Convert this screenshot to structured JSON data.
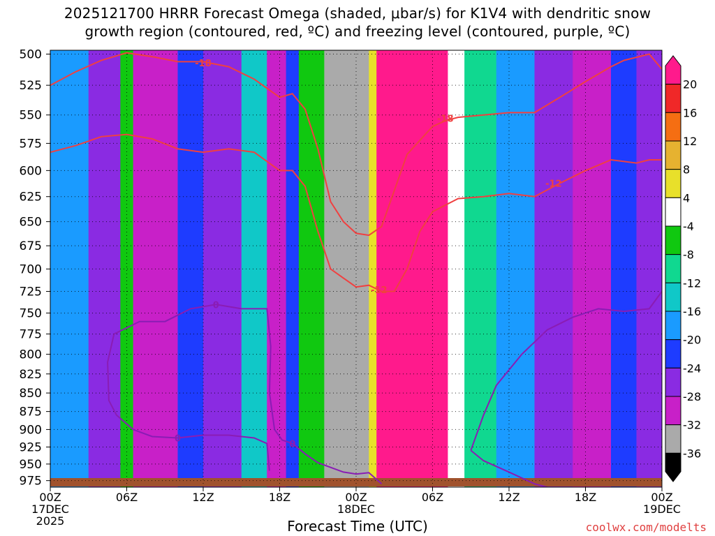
{
  "title_line1": "2025121700 HRRR Forecast Omega (shaded, μbar/s) for K1V4 with dendritic snow",
  "title_line2": "growth region (contoured, red, ºC) and freezing level (contoured, purple, ºC)",
  "xlabel": "Forecast Time (UTC)",
  "credit": "coolwx.com/modelts",
  "chart_data": {
    "type": "heatmap",
    "title": "2025121700 HRRR Forecast Omega (shaded, μbar/s) for K1V4 with dendritic snow growth region (contoured, red, ºC) and freezing level (contoured, purple, ºC)",
    "xlabel": "Forecast Time (UTC)",
    "ylabel": "",
    "x_ticks": [
      {
        "hour": 0,
        "label": "00Z",
        "sub": "17DEC",
        "sub2": "2025"
      },
      {
        "hour": 6,
        "label": "06Z",
        "sub": "",
        "sub2": ""
      },
      {
        "hour": 12,
        "label": "12Z",
        "sub": "",
        "sub2": ""
      },
      {
        "hour": 18,
        "label": "18Z",
        "sub": "",
        "sub2": ""
      },
      {
        "hour": 24,
        "label": "00Z",
        "sub": "18DEC",
        "sub2": ""
      },
      {
        "hour": 30,
        "label": "06Z",
        "sub": "",
        "sub2": ""
      },
      {
        "hour": 36,
        "label": "12Z",
        "sub": "",
        "sub2": ""
      },
      {
        "hour": 42,
        "label": "18Z",
        "sub": "",
        "sub2": ""
      },
      {
        "hour": 48,
        "label": "00Z",
        "sub": "19DEC",
        "sub2": ""
      }
    ],
    "xlim_hours": [
      0,
      48
    ],
    "y_levels_mb": [
      500,
      525,
      550,
      575,
      600,
      625,
      650,
      675,
      700,
      725,
      750,
      775,
      800,
      825,
      850,
      875,
      900,
      925,
      950,
      975
    ],
    "ylim_mb": [
      497,
      985
    ],
    "ylog": true,
    "grid": true,
    "colorbar": {
      "levels": [
        20,
        16,
        12,
        8,
        4,
        -4,
        -8,
        -12,
        -16,
        -20,
        -24,
        -28,
        -32,
        -36
      ],
      "colors": [
        "#ff1a8c",
        "#f02828",
        "#f56e12",
        "#e6b230",
        "#e8e02a",
        "#ffffff",
        "#10c810",
        "#10d890",
        "#10c8c8",
        "#1a9bff",
        "#1e3cff",
        "#8a2be2",
        "#c820c8",
        "#aaaaaa",
        "#000000"
      ],
      "placement": "right"
    },
    "omega_columns": [
      {
        "t0": 0,
        "t1": 3,
        "level": -20
      },
      {
        "t0": 3,
        "t1": 5.5,
        "level": -28
      },
      {
        "t0": 5.5,
        "t1": 6.5,
        "level": -8
      },
      {
        "t0": 6.5,
        "t1": 10,
        "level": -32
      },
      {
        "t0": 10,
        "t1": 12,
        "level": -24
      },
      {
        "t0": 12,
        "t1": 15,
        "level": -28
      },
      {
        "t0": 15,
        "t1": 17,
        "level": -16
      },
      {
        "t0": 17,
        "t1": 18.5,
        "level": -32
      },
      {
        "t0": 18.5,
        "t1": 19.5,
        "level": -24
      },
      {
        "t0": 19.5,
        "t1": 21.5,
        "level": -8
      },
      {
        "t0": 21.5,
        "t1": 25,
        "level": -36
      },
      {
        "t0": 25,
        "t1": 25.6,
        "level": 4
      },
      {
        "t0": 25.6,
        "t1": 31.2,
        "level": 20
      },
      {
        "t0": 31.2,
        "t1": 32.5,
        "level": -4
      },
      {
        "t0": 32.5,
        "t1": 35,
        "level": -12
      },
      {
        "t0": 35,
        "t1": 38,
        "level": -20
      },
      {
        "t0": 38,
        "t1": 41,
        "level": -28
      },
      {
        "t0": 41,
        "t1": 44,
        "level": -32
      },
      {
        "t0": 44,
        "t1": 46,
        "level": -24
      },
      {
        "t0": 46,
        "t1": 48,
        "level": -28
      }
    ],
    "dgz_contours": [
      {
        "label": "-18",
        "points": [
          [
            0,
            525
          ],
          [
            2,
            514
          ],
          [
            4,
            505
          ],
          [
            6,
            499
          ],
          [
            8,
            502
          ],
          [
            10,
            506
          ],
          [
            12,
            506
          ],
          [
            14,
            510
          ],
          [
            16,
            520
          ],
          [
            18,
            535
          ],
          [
            19,
            532
          ],
          [
            20,
            545
          ],
          [
            21,
            580
          ],
          [
            22,
            630
          ],
          [
            23,
            650
          ],
          [
            24,
            662
          ],
          [
            25,
            664
          ],
          [
            26,
            655
          ],
          [
            28,
            585
          ],
          [
            30,
            560
          ],
          [
            31,
            555
          ],
          [
            32,
            552
          ],
          [
            34,
            550
          ],
          [
            36,
            548
          ],
          [
            38,
            548
          ],
          [
            40,
            535
          ],
          [
            42,
            522
          ],
          [
            44,
            510
          ],
          [
            45,
            505
          ],
          [
            47,
            500
          ],
          [
            48,
            512
          ]
        ]
      },
      {
        "label": "-12",
        "points": [
          [
            0,
            583
          ],
          [
            2,
            577
          ],
          [
            4,
            569
          ],
          [
            6,
            567
          ],
          [
            8,
            571
          ],
          [
            10,
            580
          ],
          [
            12,
            583
          ],
          [
            14,
            580
          ],
          [
            16,
            583
          ],
          [
            18,
            600
          ],
          [
            19,
            600
          ],
          [
            20,
            615
          ],
          [
            21,
            660
          ],
          [
            22,
            700
          ],
          [
            23,
            710
          ],
          [
            24,
            720
          ],
          [
            25,
            718
          ],
          [
            26,
            725
          ],
          [
            27,
            725
          ],
          [
            28,
            700
          ],
          [
            29,
            660
          ],
          [
            30,
            640
          ],
          [
            32,
            627
          ],
          [
            34,
            625
          ],
          [
            36,
            622
          ],
          [
            38,
            625
          ],
          [
            40,
            612
          ],
          [
            42,
            600
          ],
          [
            44,
            590
          ],
          [
            46,
            593
          ],
          [
            47,
            590
          ],
          [
            48,
            590
          ]
        ]
      }
    ],
    "freezing_contours": [
      {
        "label": "0",
        "points": [
          [
            5,
            775
          ],
          [
            7,
            760
          ],
          [
            9,
            760
          ],
          [
            11,
            745
          ],
          [
            13,
            740
          ],
          [
            15,
            745
          ],
          [
            17,
            745
          ],
          [
            17.3,
            790
          ],
          [
            17.2,
            850
          ],
          [
            17.6,
            900
          ],
          [
            18.2,
            915
          ],
          [
            19,
            920
          ],
          [
            20,
            935
          ],
          [
            21,
            948
          ],
          [
            22,
            955
          ],
          [
            23,
            962
          ],
          [
            24,
            965
          ],
          [
            25,
            963
          ],
          [
            26,
            980
          ]
        ]
      },
      {
        "label": "0",
        "points": [
          [
            5,
            775
          ],
          [
            4.5,
            810
          ],
          [
            4.6,
            860
          ],
          [
            5.2,
            880
          ],
          [
            6.5,
            900
          ],
          [
            8,
            910
          ],
          [
            10,
            912
          ],
          [
            12,
            908
          ],
          [
            14,
            908
          ],
          [
            16,
            912
          ],
          [
            17,
            920
          ],
          [
            17.2,
            960
          ]
        ]
      },
      {
        "label": "",
        "points": [
          [
            33,
            930
          ],
          [
            34,
            880
          ],
          [
            35,
            840
          ],
          [
            37,
            800
          ],
          [
            39,
            770
          ],
          [
            41,
            755
          ],
          [
            43,
            745
          ],
          [
            45,
            748
          ],
          [
            47,
            745
          ],
          [
            48,
            725
          ]
        ]
      },
      {
        "label": "",
        "points": [
          [
            33,
            930
          ],
          [
            34,
            945
          ],
          [
            36,
            962
          ],
          [
            38,
            980
          ],
          [
            39,
            985
          ]
        ]
      }
    ],
    "contour_label_positions": [
      {
        "label": "-18",
        "hour": 12,
        "mb": 507
      },
      {
        "label": "-18",
        "hour": 31,
        "mb": 553
      },
      {
        "label": "-12",
        "hour": 25.8,
        "mb": 723
      },
      {
        "label": "-12",
        "hour": 39.5,
        "mb": 612
      },
      {
        "label": "0",
        "hour": 13,
        "mb": 740
      },
      {
        "label": "0",
        "hour": 10,
        "mb": 912
      },
      {
        "label": "0",
        "hour": 19,
        "mb": 920
      }
    ]
  }
}
